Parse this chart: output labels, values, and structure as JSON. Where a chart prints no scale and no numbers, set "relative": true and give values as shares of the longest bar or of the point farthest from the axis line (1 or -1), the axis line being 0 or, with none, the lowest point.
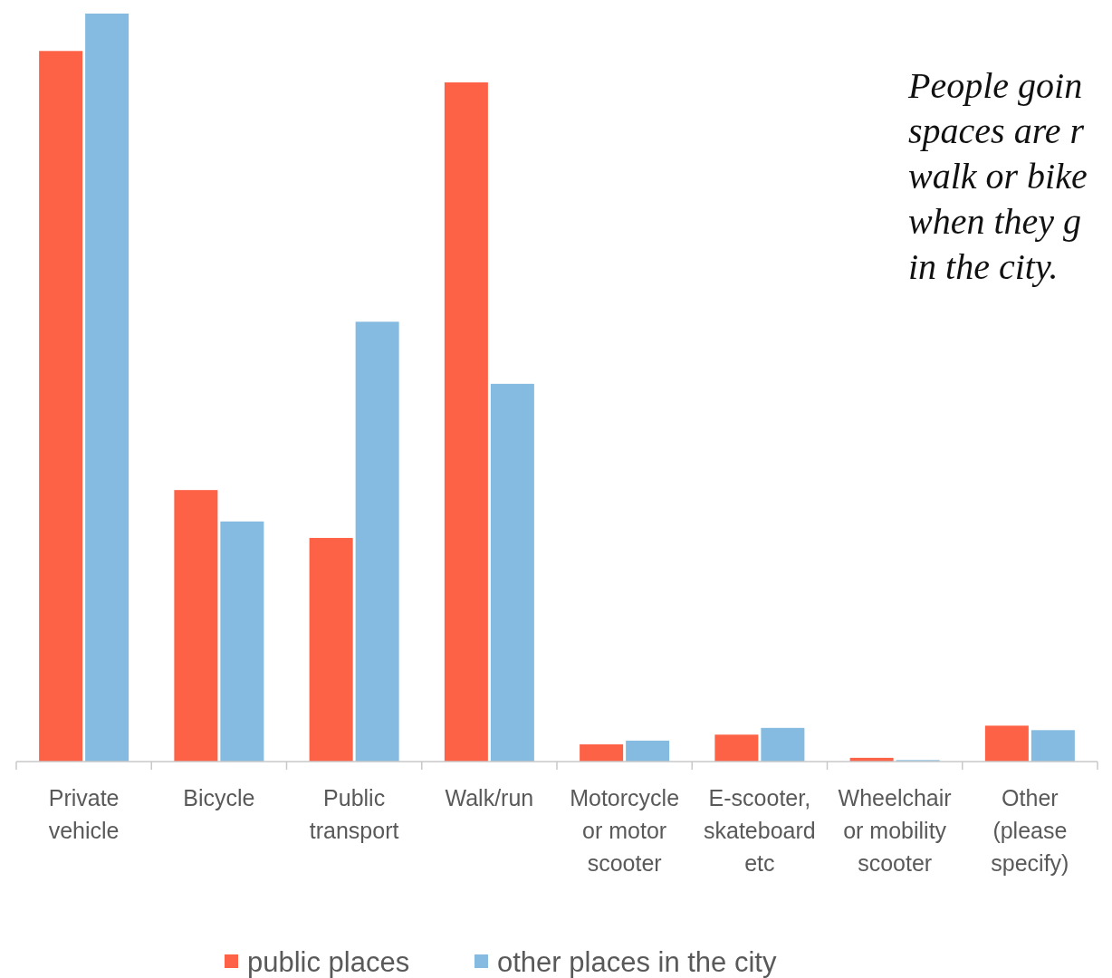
{
  "chart_data": {
    "type": "bar",
    "relative": true,
    "categories": [
      "Private\nvehicle",
      "Bicycle",
      "Public\ntransport",
      "Walk/run",
      "Motorcycle\nor motor\nscooter",
      "E-scooter,\nskateboard\netc",
      "Wheelchair\nor mobility\nscooter",
      "Other\n(please\nspecify)"
    ],
    "series": [
      {
        "name": "public places",
        "color": "#fe6246",
        "values": [
          0.95,
          0.363,
          0.299,
          0.908,
          0.023,
          0.036,
          0.005,
          0.048
        ]
      },
      {
        "name": "other places in the city",
        "color": "#85bbe0",
        "values": [
          1,
          0.321,
          0.588,
          0.505,
          0.028,
          0.045,
          0.002,
          0.042
        ]
      }
    ],
    "annotations": [
      "People goin\nspaces are r\nwalk or bike\nwhen they g\nin the city."
    ],
    "legend": "bottom",
    "grid": false
  }
}
